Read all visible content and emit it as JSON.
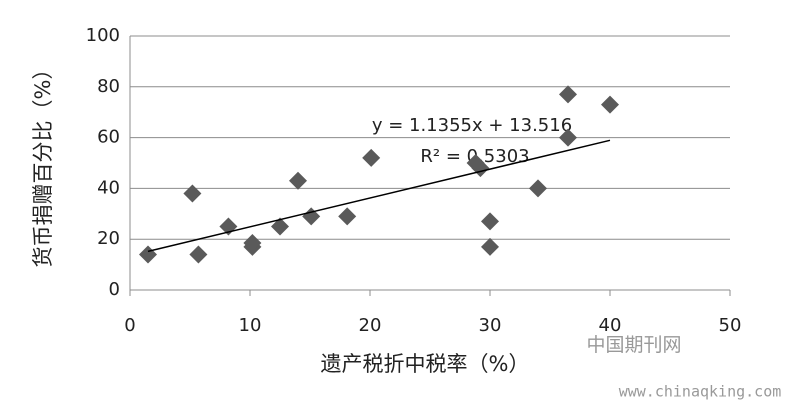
{
  "chart_data": {
    "type": "scatter",
    "x_label": "遗产税折中税率（%）",
    "y_label": "货币捐赠百分比（%）",
    "x": [
      1.5,
      5.2,
      5.7,
      8.2,
      10.2,
      10.2,
      12.5,
      14,
      15.1,
      18.1,
      20.1,
      28.8,
      29.2,
      30,
      30,
      34,
      36.5,
      36.5,
      40
    ],
    "values": [
      14,
      38,
      14,
      25,
      17,
      18.5,
      25,
      43,
      29,
      29,
      52,
      50,
      48,
      27,
      17,
      40,
      77,
      60,
      73
    ],
    "color": "#5a5a5a",
    "xlim": [
      0,
      50
    ],
    "xticks": [
      0,
      10,
      20,
      30,
      40,
      50
    ],
    "ylim": [
      0,
      100
    ],
    "yticks": [
      0,
      20,
      40,
      60,
      80,
      100
    ],
    "grid": true,
    "trendline": {
      "slope": 1.1355,
      "intercept": 13.516,
      "xrange": [
        1.5,
        40
      ],
      "color": "#000000"
    },
    "annotations": [
      "y = 1.1355x + 13.516",
      "R² = 0.5303"
    ],
    "watermarks": [
      "中国期刊网",
      "www.chinaqking.com"
    ]
  }
}
